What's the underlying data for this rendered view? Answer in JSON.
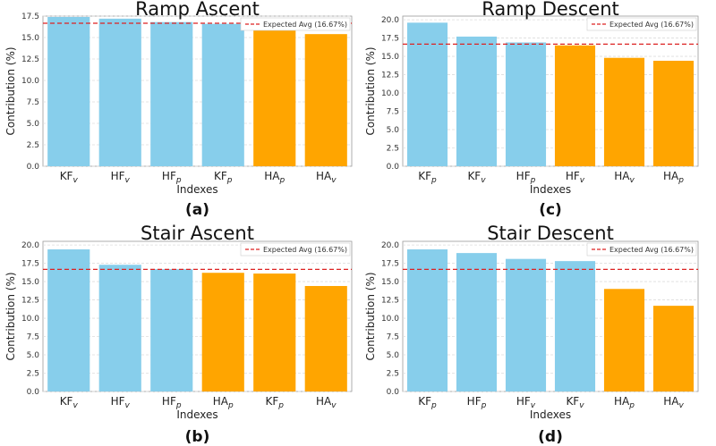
{
  "colors": {
    "hip_knee": "#87ceeb",
    "ankle": "#ffa500",
    "expected_line": "#dd2222"
  },
  "chart_data": [
    {
      "type": "bar",
      "title": "Ramp Ascent",
      "panel_letter": "(a)",
      "xlabel": "Indexes",
      "ylabel": "Contribution (%)",
      "ylim": [
        0,
        17.5
      ],
      "yticks": [
        "0.0",
        "2.5",
        "5.0",
        "7.5",
        "10.0",
        "12.5",
        "15.0",
        "17.5"
      ],
      "categories": [
        {
          "main": "KF",
          "sub": "v"
        },
        {
          "main": "HF",
          "sub": "v"
        },
        {
          "main": "HF",
          "sub": "p"
        },
        {
          "main": "KF",
          "sub": "p"
        },
        {
          "main": "HA",
          "sub": "p"
        },
        {
          "main": "HA",
          "sub": "v"
        }
      ],
      "values": [
        17.4,
        17.2,
        16.8,
        16.6,
        16.3,
        15.4
      ],
      "bar_groups": [
        "hip_knee",
        "hip_knee",
        "hip_knee",
        "hip_knee",
        "ankle",
        "ankle"
      ],
      "expected_avg": 16.67,
      "legend": "Expected Avg (16.67%)",
      "grid": true
    },
    {
      "type": "bar",
      "title": "Ramp Descent",
      "panel_letter": "(c)",
      "xlabel": "Indexes",
      "ylabel": "Contribution (%)",
      "ylim": [
        0,
        20.5
      ],
      "yticks": [
        "0.0",
        "2.5",
        "5.0",
        "7.5",
        "10.0",
        "12.5",
        "15.0",
        "17.5",
        "20.0"
      ],
      "categories": [
        {
          "main": "KF",
          "sub": "p"
        },
        {
          "main": "KF",
          "sub": "v"
        },
        {
          "main": "HF",
          "sub": "p"
        },
        {
          "main": "HF",
          "sub": "v"
        },
        {
          "main": "HA",
          "sub": "v"
        },
        {
          "main": "HA",
          "sub": "p"
        }
      ],
      "values": [
        19.6,
        17.7,
        16.9,
        16.5,
        14.8,
        14.4
      ],
      "bar_groups": [
        "hip_knee",
        "hip_knee",
        "hip_knee",
        "ankle",
        "ankle",
        "ankle"
      ],
      "expected_avg": 16.67,
      "legend": "Expected Avg (16.67%)",
      "grid": true
    },
    {
      "type": "bar",
      "title": "Stair Ascent",
      "panel_letter": "(b)",
      "xlabel": "Indexes",
      "ylabel": "Contribution (%)",
      "ylim": [
        0,
        20.5
      ],
      "yticks": [
        "0.0",
        "2.5",
        "5.0",
        "7.5",
        "10.0",
        "12.5",
        "15.0",
        "17.5",
        "20.0"
      ],
      "categories": [
        {
          "main": "KF",
          "sub": "v"
        },
        {
          "main": "HF",
          "sub": "v"
        },
        {
          "main": "HF",
          "sub": "p"
        },
        {
          "main": "HA",
          "sub": "p"
        },
        {
          "main": "KF",
          "sub": "p"
        },
        {
          "main": "HA",
          "sub": "v"
        }
      ],
      "values": [
        19.4,
        17.3,
        16.7,
        16.2,
        16.1,
        14.4
      ],
      "bar_groups": [
        "hip_knee",
        "hip_knee",
        "hip_knee",
        "ankle",
        "ankle",
        "ankle"
      ],
      "expected_avg": 16.67,
      "legend": "Expected Avg (16.67%)",
      "grid": true
    },
    {
      "type": "bar",
      "title": "Stair Descent",
      "panel_letter": "(d)",
      "xlabel": "Indexes",
      "ylabel": "Contribution (%)",
      "ylim": [
        0,
        20.5
      ],
      "yticks": [
        "0.0",
        "2.5",
        "5.0",
        "7.5",
        "10.0",
        "12.5",
        "15.0",
        "17.5",
        "20.0"
      ],
      "categories": [
        {
          "main": "KF",
          "sub": "p"
        },
        {
          "main": "HF",
          "sub": "p"
        },
        {
          "main": "HF",
          "sub": "v"
        },
        {
          "main": "KF",
          "sub": "v"
        },
        {
          "main": "HA",
          "sub": "p"
        },
        {
          "main": "HA",
          "sub": "v"
        }
      ],
      "values": [
        19.4,
        18.9,
        18.1,
        17.8,
        14.0,
        11.7
      ],
      "bar_groups": [
        "hip_knee",
        "hip_knee",
        "hip_knee",
        "hip_knee",
        "ankle",
        "ankle"
      ],
      "expected_avg": 16.67,
      "legend": "Expected Avg (16.67%)",
      "grid": true
    }
  ]
}
